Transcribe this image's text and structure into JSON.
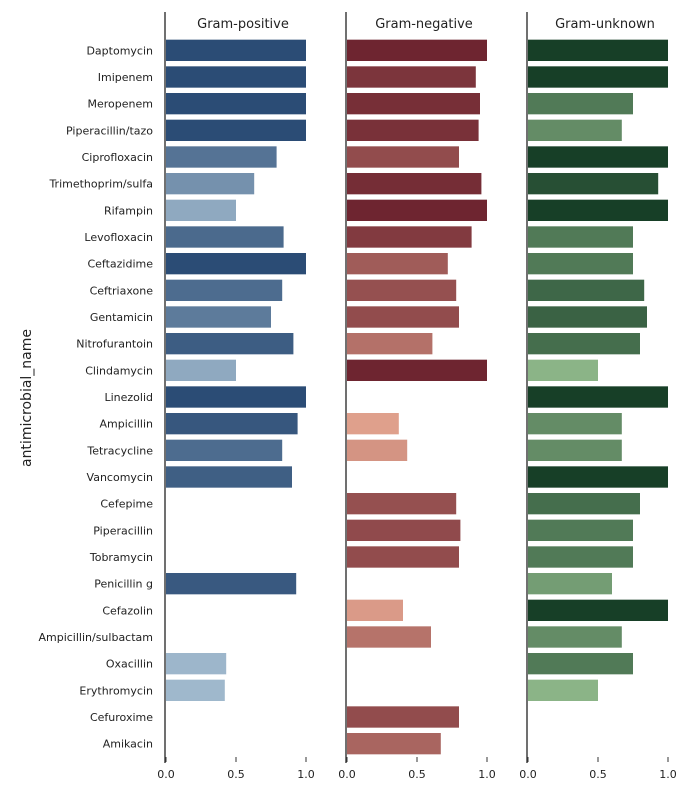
{
  "chart_data": {
    "type": "bar",
    "orientation": "horizontal",
    "ylabel": "antimicrobial_name",
    "xlim": [
      0,
      1
    ],
    "x_ticks": [
      "0.0",
      "0.5",
      "1.0"
    ],
    "grid": false,
    "categories": [
      "Daptomycin",
      "Imipenem",
      "Meropenem",
      "Piperacillin/tazo",
      "Ciprofloxacin",
      "Trimethoprim/sulfa",
      "Rifampin",
      "Levofloxacin",
      "Ceftazidime",
      "Ceftriaxone",
      "Gentamicin",
      "Nitrofurantoin",
      "Clindamycin",
      "Linezolid",
      "Ampicillin",
      "Tetracycline",
      "Vancomycin",
      "Cefepime",
      "Piperacillin",
      "Tobramycin",
      "Penicillin g",
      "Cefazolin",
      "Ampicillin/sulbactam",
      "Oxacillin",
      "Erythromycin",
      "Cefuroxime",
      "Amikacin"
    ],
    "panels": [
      {
        "title": "Gram-positive",
        "palette": [
          "#9fb8cc",
          "#2b4c75"
        ],
        "values": [
          1.0,
          1.0,
          1.0,
          1.0,
          0.79,
          0.63,
          0.5,
          0.84,
          1.0,
          0.83,
          0.75,
          0.91,
          0.5,
          1.0,
          0.94,
          0.83,
          0.9,
          null,
          null,
          null,
          0.93,
          null,
          null,
          0.43,
          0.42,
          null,
          null
        ]
      },
      {
        "title": "Gram-negative",
        "palette": [
          "#dfa08c",
          "#6e2530"
        ],
        "values": [
          1.0,
          0.92,
          0.95,
          0.94,
          0.8,
          0.96,
          1.0,
          0.89,
          0.72,
          0.78,
          0.8,
          0.61,
          1.0,
          null,
          0.37,
          0.43,
          null,
          0.78,
          0.81,
          0.8,
          null,
          0.4,
          0.6,
          null,
          null,
          0.8,
          0.67
        ]
      },
      {
        "title": "Gram-unknown",
        "palette": [
          "#8bb487",
          "#173f27"
        ],
        "values": [
          1.0,
          1.0,
          0.75,
          0.67,
          1.0,
          0.93,
          1.0,
          0.75,
          0.75,
          0.83,
          0.85,
          0.8,
          0.5,
          1.0,
          0.67,
          0.67,
          1.0,
          0.8,
          0.75,
          0.75,
          0.6,
          1.0,
          0.67,
          0.75,
          0.5,
          null,
          null
        ]
      }
    ]
  }
}
